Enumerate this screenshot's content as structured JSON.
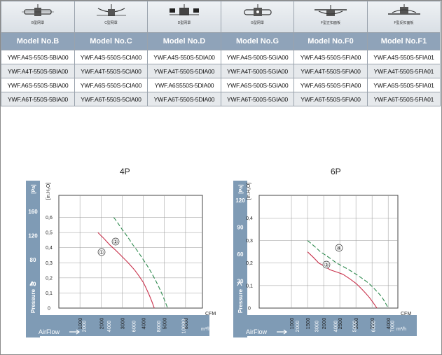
{
  "icons": [
    {
      "caption": "B型网罩"
    },
    {
      "caption": "C型网罩"
    },
    {
      "caption": "D型网罩"
    },
    {
      "caption": "G型网罩"
    },
    {
      "caption": "F型正扣面板"
    },
    {
      "caption": "F型反扣面板"
    }
  ],
  "table": {
    "headers": [
      "Model No.B",
      "Model No.C",
      "Model No.D",
      "Model No.G",
      "Model No.F0",
      "Model No.F1"
    ],
    "rows": [
      [
        "YWF.A4S-550S-5BIA00",
        "YWF.A4S-550S-5CIA00",
        "YWF.A4S-550S-5DIA00",
        "YWF.A4S-500S-5GIA00",
        "YWF.A4S-550S-5FIA00",
        "YWF.A4S-550S-5FIA01"
      ],
      [
        "YWF.A4T-550S-5BIA00",
        "YWF.A4T-550S-5CIA00",
        "YWF.A4T-550S-5DIA00",
        "YWF.A4T-500S-5GIA00",
        "YWF.A4T-550S-5FIA00",
        "YWF.A4T-550S-5FIA01"
      ],
      [
        "YWF.A6S-550S-5BIA00",
        "YWF.A6S-550S-5CIA00",
        "YWF.A6S550S-5DIA00",
        "YWF.A6S-500S-5GIA00",
        "YWF.A6S-550S-5FIA00",
        "YWF.A6S-550S-5FIA01"
      ],
      [
        "YWF.A6T-550S-5BIA00",
        "YWF.A6T-550S-5CIA00",
        "YWF.A6T-550S-5DIA00",
        "YWF.A6T-500S-5GIA00",
        "YWF.A6T-550S-5FIA00",
        "YWF.A6T-550S-5FIA01"
      ]
    ]
  },
  "colors": {
    "pa_band": "#7f9bb5",
    "grid": "#999999",
    "red": "#c8304a",
    "green": "#2e8a4e",
    "table_header": "#8fa3b9"
  },
  "chart_data": [
    {
      "type": "line",
      "title": "4P",
      "x_unit": "CFM",
      "x_ticks": [
        1000,
        2000,
        3000,
        4000,
        5000,
        6000
      ],
      "xlim": [
        0,
        6800
      ],
      "y_unit": "[in.H₂O]",
      "y_ticks": [
        0,
        0.1,
        0.2,
        0.3,
        0.4,
        0.5,
        0.6
      ],
      "y_tick_labels": [
        "0",
        "0,1",
        "0,2",
        "0,3",
        "0,4",
        "0,5",
        "0,6"
      ],
      "ylim": [
        0,
        0.7
      ],
      "pa_unit": "[Pa]",
      "pa_ticks": [
        40,
        80,
        120,
        160
      ],
      "pa_label": "Pressure",
      "airflow_label": "AirFlow",
      "airflow_unit": "m³/h",
      "airflow_ticks": [
        2000,
        4000,
        6000,
        8000,
        10000
      ],
      "series": [
        {
          "name": "①",
          "style": "solid",
          "color": "#c8304a",
          "x": [
            1850,
            2400,
            3000,
            3600,
            4000,
            4300,
            4520
          ],
          "y": [
            0.5,
            0.42,
            0.34,
            0.25,
            0.17,
            0.08,
            0.0
          ]
        },
        {
          "name": "②",
          "style": "dashed",
          "color": "#2e8a4e",
          "x": [
            2600,
            3000,
            3500,
            4000,
            4400,
            4800,
            5150
          ],
          "y": [
            0.6,
            0.52,
            0.42,
            0.32,
            0.23,
            0.12,
            0.0
          ]
        }
      ]
    },
    {
      "type": "line",
      "title": "6P",
      "x_unit": "CFM",
      "x_ticks": [
        1000,
        1500,
        2000,
        2500,
        3000,
        3500,
        4000
      ],
      "xlim": [
        0,
        4300
      ],
      "y_unit": "[in.H₂O]",
      "y_ticks": [
        0,
        0.1,
        0.2,
        0.3,
        0.4
      ],
      "y_tick_labels": [
        "0",
        "0,1",
        "0,2",
        "0,3",
        "0,4"
      ],
      "ylim": [
        0,
        0.47
      ],
      "pa_unit": "[Pa]",
      "pa_ticks": [
        30,
        60,
        90,
        120
      ],
      "pa_label": "Pressure",
      "airflow_label": "AirFlow",
      "airflow_unit": "m³/h",
      "airflow_ticks": [
        2000,
        3000,
        4000,
        5000,
        6000,
        7000
      ],
      "series": [
        {
          "name": "③",
          "style": "solid",
          "color": "#c8304a",
          "x": [
            1500,
            1850,
            2200,
            2600,
            3000,
            3400,
            3650
          ],
          "y": [
            0.25,
            0.2,
            0.17,
            0.15,
            0.11,
            0.05,
            0.0
          ]
        },
        {
          "name": "④",
          "style": "dashed",
          "color": "#2e8a4e",
          "x": [
            1500,
            1900,
            2400,
            2900,
            3400,
            3800,
            4000
          ],
          "y": [
            0.3,
            0.25,
            0.2,
            0.16,
            0.11,
            0.05,
            0.0
          ]
        }
      ]
    }
  ]
}
